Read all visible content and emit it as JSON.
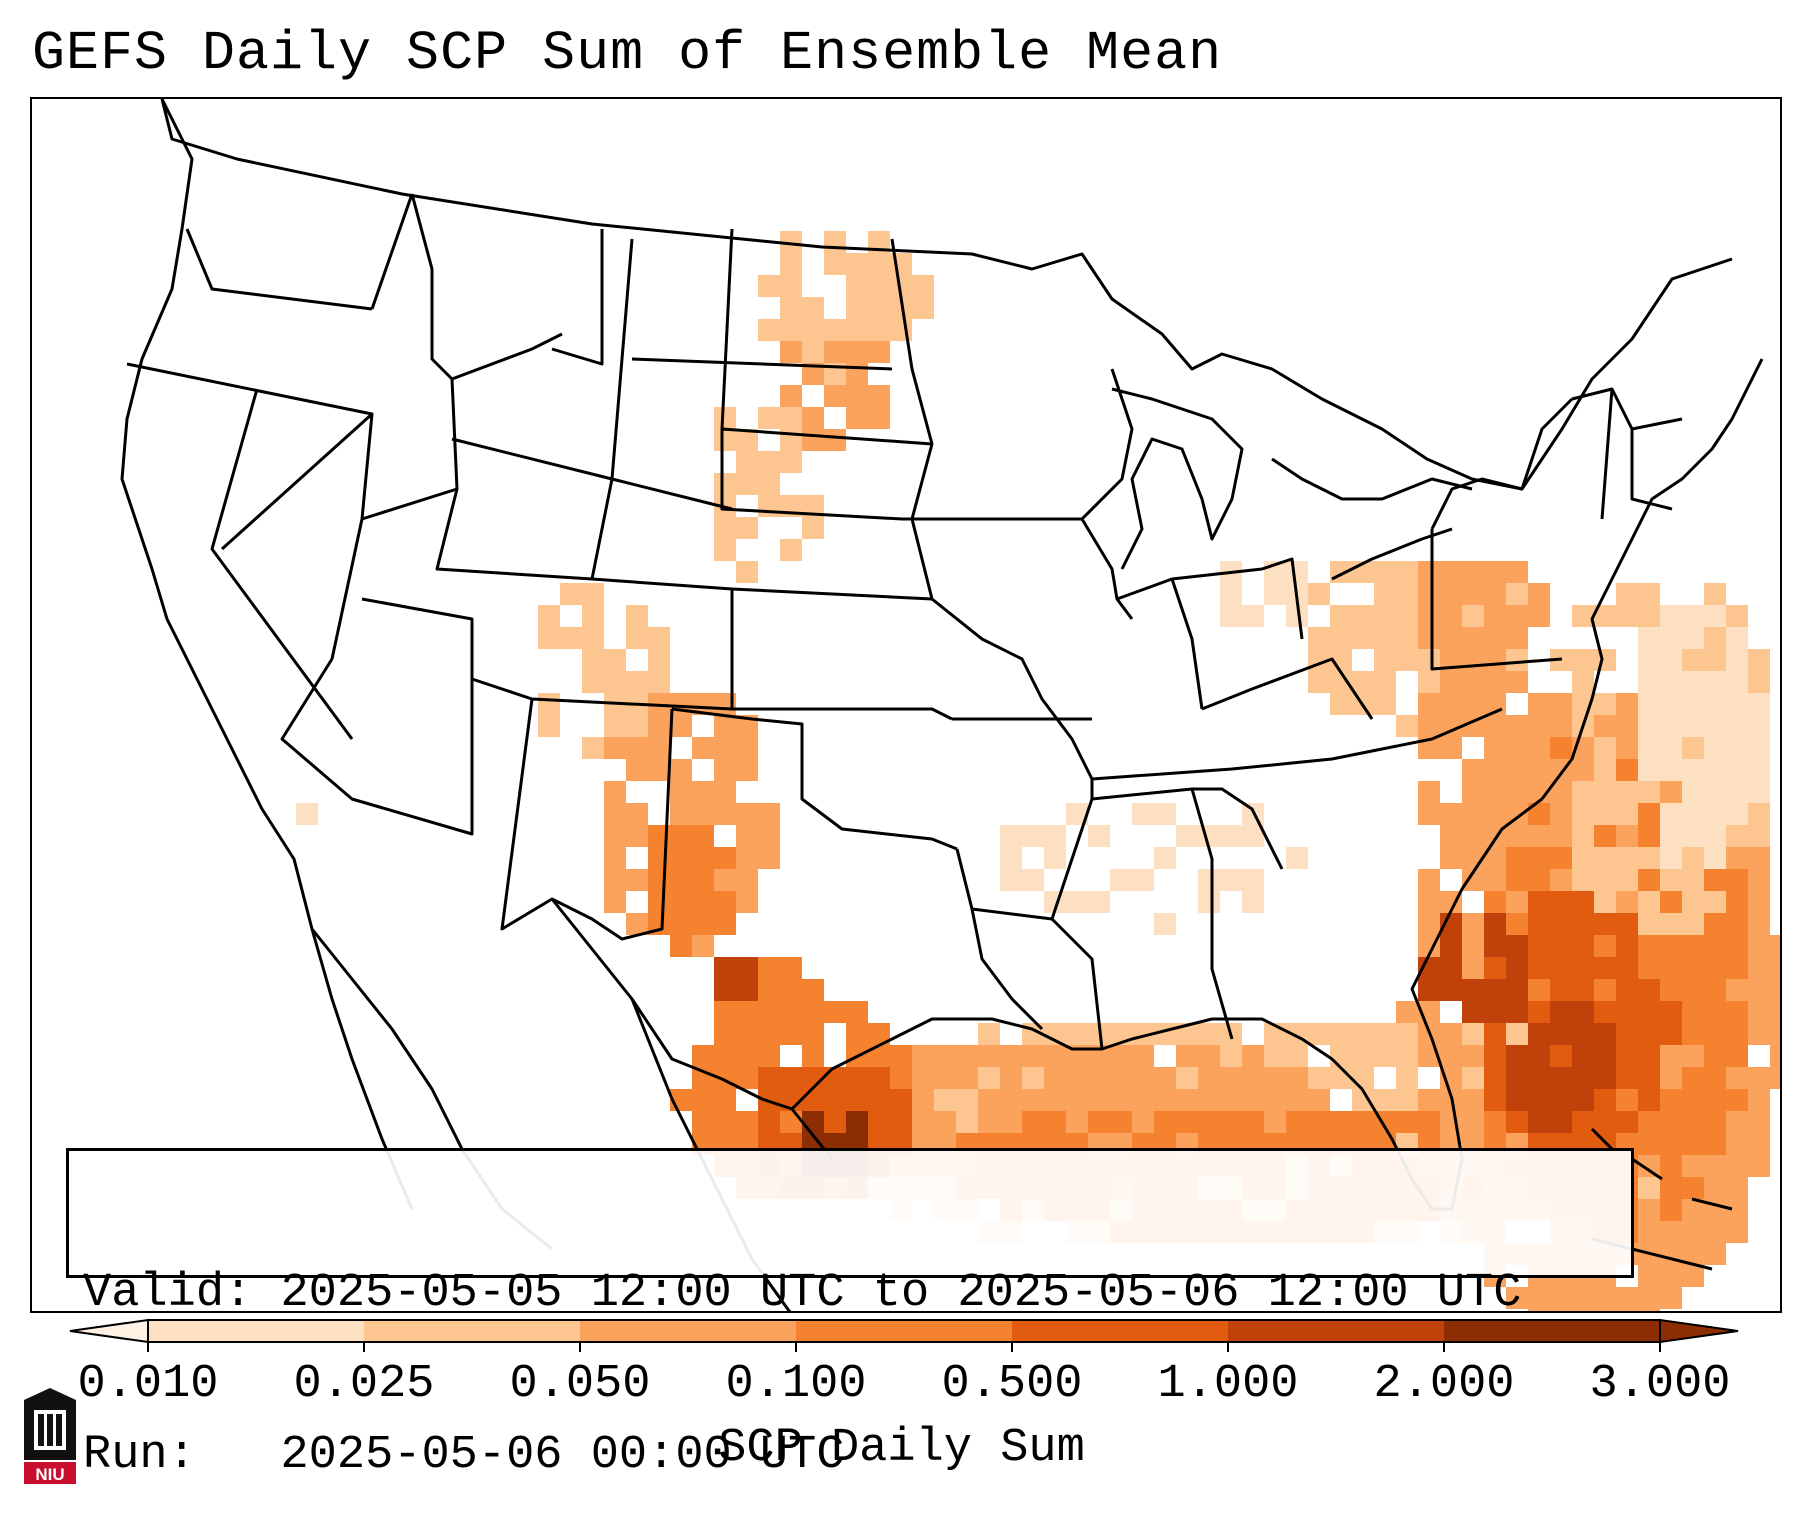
{
  "title": "GEFS Daily SCP Sum of Ensemble Mean",
  "info": {
    "valid_label": "Valid:",
    "valid_value": "2025-05-05 12:00 UTC to 2025-05-06 12:00 UTC",
    "run_label": "Run:",
    "run_value": "2025-05-06 00:00 UTC"
  },
  "colorbar": {
    "label": "SCP Daily Sum",
    "ticks": [
      "0.010",
      "0.025",
      "0.050",
      "0.100",
      "0.500",
      "1.000",
      "2.000",
      "3.000"
    ],
    "colors": [
      "#fff2e4",
      "#fde0c2",
      "#fdc690",
      "#fba35c",
      "#f5822f",
      "#e25c0f",
      "#c0410a",
      "#8c2d04"
    ],
    "extend": "both"
  },
  "logo": {
    "text": "NIU",
    "color": "#c8102e",
    "icon": "university-building-icon"
  },
  "map": {
    "region": "CONUS",
    "field_colors": {
      "light": "#fde0c2",
      "light2": "#fdc690",
      "mid": "#fba35c",
      "mid2": "#f5822f",
      "dark": "#e25c0f",
      "darker": "#c0410a",
      "darkest": "#8c2d04"
    }
  }
}
